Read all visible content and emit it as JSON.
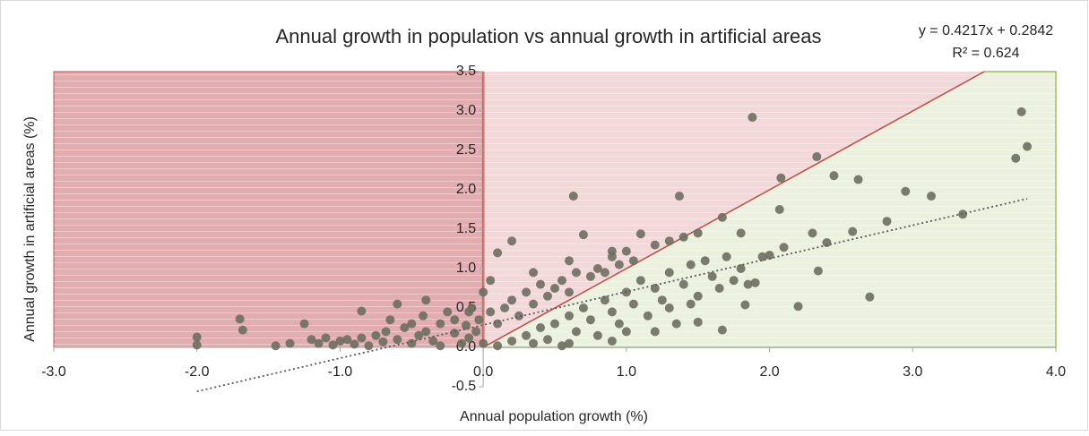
{
  "chart_data": {
    "type": "scatter",
    "title": "Annual growth in population vs annual growth in artificial areas",
    "x_label": "Annual population growth (%)",
    "y_label": "Annual  growth in artificial areas (%)",
    "trendline": {
      "equation": "y = 0.4217x + 0.2842",
      "r2": "R² = 0.624",
      "slope": 0.4217,
      "intercept": 0.2842,
      "color": "#595959"
    },
    "xlim": [
      -3,
      4
    ],
    "ylim": [
      -0.5,
      3.5
    ],
    "xticks": [
      {
        "value": -3,
        "label": "-3.0"
      },
      {
        "value": -2,
        "label": "-2.0"
      },
      {
        "value": -1,
        "label": "-1.0"
      },
      {
        "value": 0,
        "label": "0.0"
      },
      {
        "value": 1,
        "label": "1.0"
      },
      {
        "value": 2,
        "label": "2.0"
      },
      {
        "value": 3,
        "label": "3.0"
      },
      {
        "value": 4,
        "label": "4.0"
      }
    ],
    "yticks": [
      {
        "value": -0.5,
        "label": "-0.5"
      },
      {
        "value": 0,
        "label": "0.0"
      },
      {
        "value": 0.5,
        "label": "0.5"
      },
      {
        "value": 1,
        "label": "1.0"
      },
      {
        "value": 1.5,
        "label": "1.5"
      },
      {
        "value": 2,
        "label": "2.0"
      },
      {
        "value": 2.5,
        "label": "2.5"
      },
      {
        "value": 3,
        "label": "3.0"
      },
      {
        "value": 3.5,
        "label": "3.5"
      }
    ],
    "color": "#6e6e60",
    "x": [
      -2.0,
      -2.0,
      -1.7,
      -1.68,
      -1.25,
      -0.85,
      -0.6,
      -0.4,
      -0.1,
      0.05,
      0.1,
      0.2,
      0.35,
      0.63,
      0.6,
      0.7,
      0.9,
      1.0,
      1.1,
      1.37,
      1.88,
      2.08,
      2.33,
      2.45,
      2.62,
      2.95,
      3.13,
      3.35,
      3.72,
      3.76,
      3.8,
      1.67,
      2.07,
      2.82,
      2.58,
      2.3,
      1.8,
      2.0,
      2.2,
      2.34,
      2.7,
      1.67,
      1.5,
      1.83,
      2.1,
      2.4,
      -1.45,
      -1.35,
      -1.2,
      -1.15,
      -1.1,
      -1.05,
      -1.0,
      -0.95,
      -0.9,
      -0.85,
      -0.8,
      -0.75,
      -0.7,
      -0.68,
      -0.65,
      -0.6,
      -0.55,
      -0.5,
      -0.5,
      -0.45,
      -0.42,
      -0.4,
      -0.35,
      -0.3,
      -0.3,
      -0.25,
      -0.2,
      -0.2,
      -0.15,
      -0.12,
      -0.1,
      -0.08,
      -0.05,
      -0.03,
      0.0,
      0.0,
      0.05,
      0.1,
      0.15,
      0.2,
      0.25,
      0.3,
      0.35,
      0.4,
      0.45,
      0.5,
      0.55,
      0.6,
      0.65,
      0.75,
      0.8,
      0.85,
      0.9,
      0.95,
      1.05,
      1.2,
      1.3,
      1.4,
      1.5,
      0.1,
      0.2,
      0.3,
      0.35,
      0.4,
      0.45,
      0.5,
      0.55,
      0.6,
      0.65,
      0.7,
      0.75,
      0.8,
      0.85,
      0.9,
      0.95,
      1.0,
      1.05,
      1.1,
      1.15,
      1.2,
      1.25,
      1.3,
      1.35,
      1.4,
      1.45,
      1.5,
      1.55,
      1.6,
      1.65,
      1.7,
      1.75,
      1.8,
      1.85,
      1.9,
      1.95,
      0.6,
      1.0,
      1.2,
      0.9,
      1.3,
      1.45
    ],
    "y": [
      0.13,
      0.03,
      0.36,
      0.22,
      0.3,
      0.46,
      0.55,
      0.6,
      0.45,
      0.85,
      1.2,
      1.35,
      0.95,
      1.92,
      1.1,
      1.43,
      1.22,
      1.22,
      1.44,
      1.92,
      2.92,
      2.15,
      2.42,
      2.18,
      2.13,
      1.98,
      1.92,
      1.69,
      2.4,
      2.99,
      2.55,
      1.65,
      1.75,
      1.6,
      1.47,
      1.45,
      1.45,
      1.17,
      0.52,
      0.97,
      0.64,
      0.22,
      0.32,
      0.54,
      1.27,
      1.33,
      0.02,
      0.05,
      0.1,
      0.05,
      0.12,
      0.03,
      0.08,
      0.1,
      0.04,
      0.12,
      0.02,
      0.15,
      0.07,
      0.2,
      0.35,
      0.1,
      0.25,
      0.05,
      0.3,
      0.15,
      0.4,
      0.2,
      0.08,
      0.3,
      0.02,
      0.45,
      0.18,
      0.35,
      0.05,
      0.28,
      0.12,
      0.5,
      0.2,
      0.35,
      0.7,
      0.05,
      0.45,
      0.3,
      0.5,
      0.6,
      0.4,
      0.7,
      0.55,
      0.8,
      0.65,
      0.75,
      0.85,
      0.7,
      0.95,
      0.9,
      1.0,
      0.95,
      1.15,
      1.05,
      1.1,
      1.3,
      1.35,
      1.4,
      1.45,
      0.02,
      0.08,
      0.15,
      0.05,
      0.25,
      0.1,
      0.3,
      0.02,
      0.4,
      0.2,
      0.5,
      0.35,
      0.15,
      0.6,
      0.45,
      0.3,
      0.7,
      0.55,
      0.85,
      0.4,
      0.75,
      0.6,
      0.95,
      0.3,
      0.8,
      1.05,
      0.65,
      1.1,
      0.9,
      0.75,
      1.15,
      0.85,
      1.0,
      0.8,
      0.82,
      1.15,
      0.05,
      0.2,
      0.2,
      0.08,
      0.5,
      0.55
    ]
  }
}
